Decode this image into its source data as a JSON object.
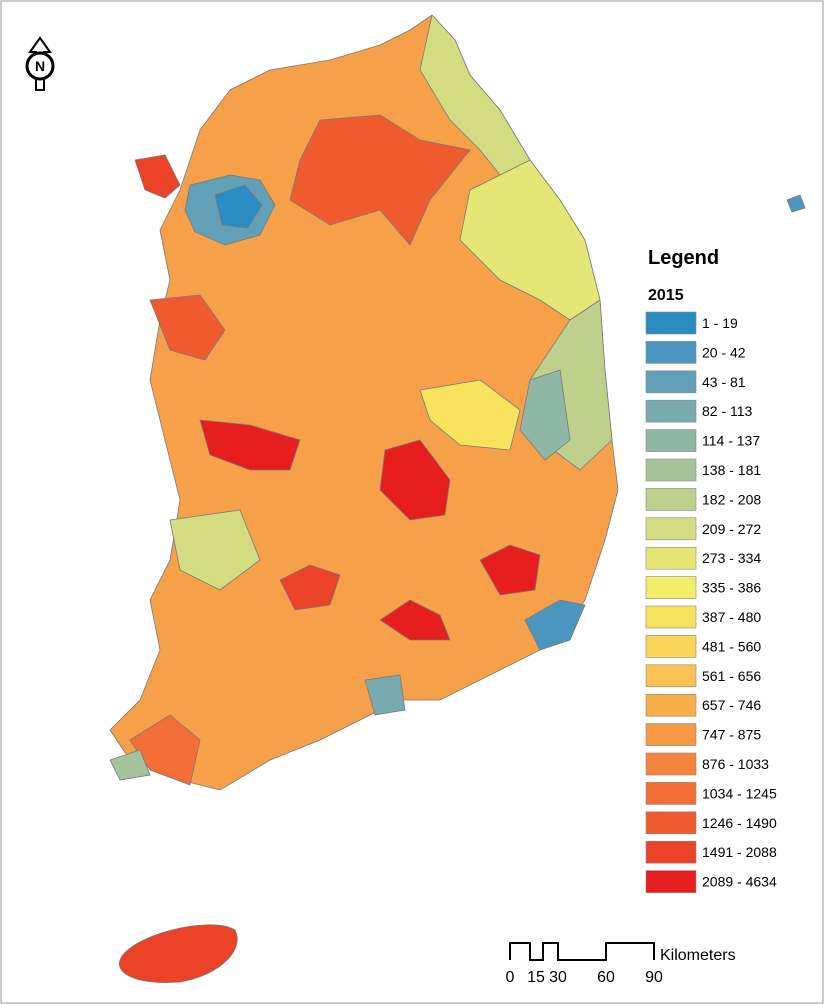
{
  "north_arrow": {
    "label": "N"
  },
  "legend": {
    "title": "Legend",
    "subtitle": "2015",
    "classes": [
      {
        "label": "1 - 19",
        "color": "#2b8cc4"
      },
      {
        "label": "20 - 42",
        "color": "#4a96c0"
      },
      {
        "label": "43 - 81",
        "color": "#62a0b8"
      },
      {
        "label": "82 - 113",
        "color": "#78aab0"
      },
      {
        "label": "114 - 137",
        "color": "#8fb7a6"
      },
      {
        "label": "138 - 181",
        "color": "#a6c29a"
      },
      {
        "label": "182 - 208",
        "color": "#bfcf8c"
      },
      {
        "label": "209 - 272",
        "color": "#d3dc80"
      },
      {
        "label": "273 - 334",
        "color": "#e4e676"
      },
      {
        "label": "335 - 386",
        "color": "#f2ee6a"
      },
      {
        "label": "387 - 480",
        "color": "#f8e35e"
      },
      {
        "label": "481 - 560",
        "color": "#fbd458"
      },
      {
        "label": "561 - 656",
        "color": "#fbc152"
      },
      {
        "label": "657 - 746",
        "color": "#f9ae4c"
      },
      {
        "label": "747 - 875",
        "color": "#f79a45"
      },
      {
        "label": "876 - 1033",
        "color": "#f5843e"
      },
      {
        "label": "1034 - 1245",
        "color": "#f26e36"
      },
      {
        "label": "1246 - 1490",
        "color": "#ef5a2e"
      },
      {
        "label": "1491 - 2088",
        "color": "#eb4228"
      },
      {
        "label": "2089 - 4634",
        "color": "#e61e1e"
      }
    ]
  },
  "scale_bar": {
    "unit": "Kilometers",
    "labels": [
      "0",
      "15",
      "30",
      "60",
      "90"
    ]
  }
}
